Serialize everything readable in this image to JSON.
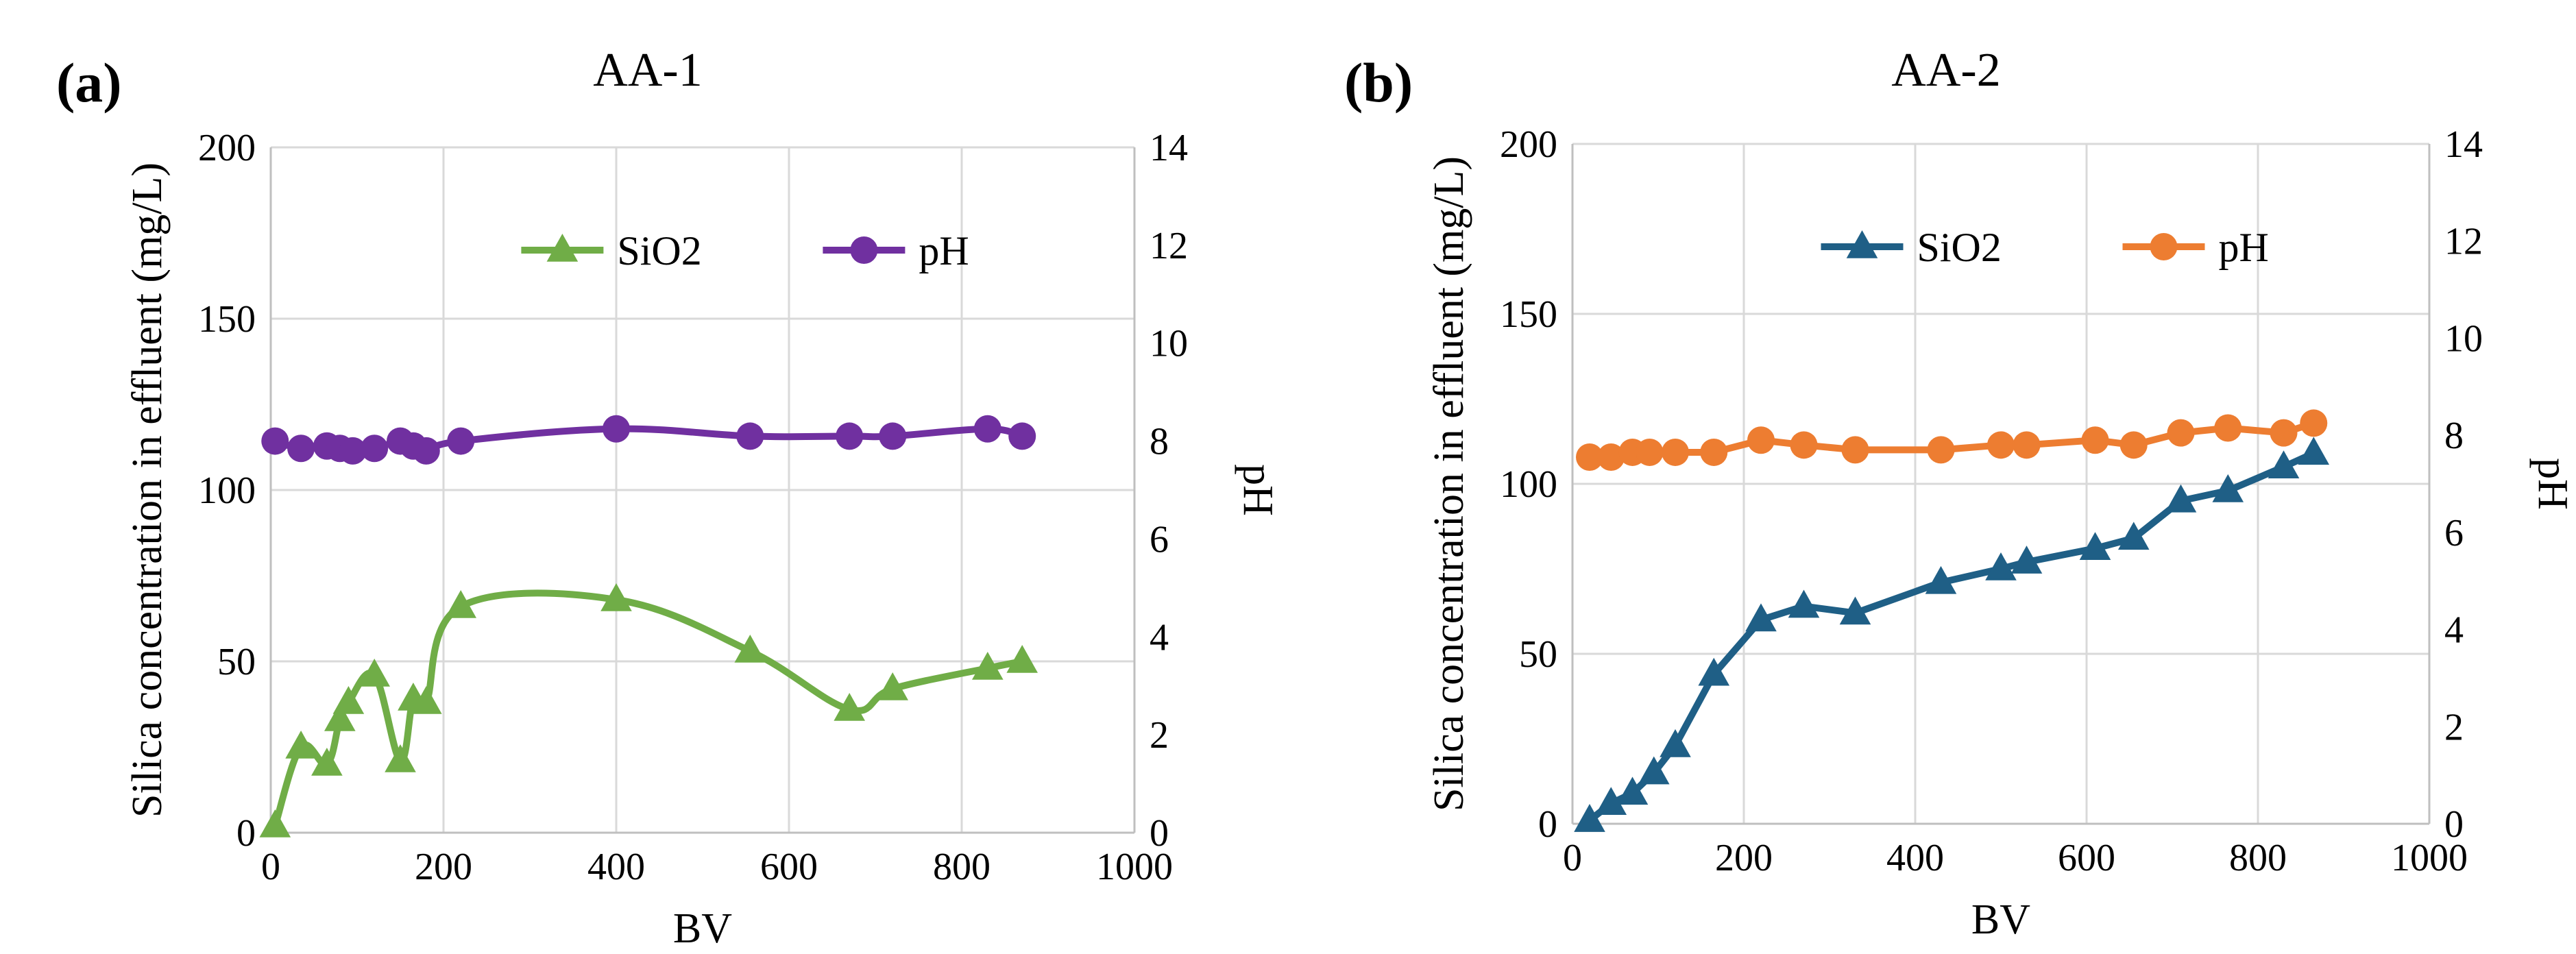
{
  "chart_data": [
    {
      "type": "line",
      "panel_label": "(a)",
      "title": "AA-1",
      "xlabel": "BV",
      "ylabel": "Silica concentration in effluent (mg/L)",
      "y2label": "pH",
      "xlim": [
        0,
        1000
      ],
      "ylim": [
        0,
        200
      ],
      "y2lim": [
        0,
        14
      ],
      "x_ticks": [
        0,
        200,
        400,
        600,
        800,
        1000
      ],
      "y_ticks": [
        0,
        50,
        100,
        150,
        200
      ],
      "y2_ticks": [
        0,
        2,
        4,
        6,
        8,
        10,
        12,
        14
      ],
      "grid": true,
      "legend_position": "top-center",
      "smooth": true,
      "series": [
        {
          "name": "SiO2",
          "axis": "left",
          "marker": "triangle",
          "color": "#70ad47",
          "x": [
            5,
            35,
            65,
            80,
            90,
            120,
            150,
            165,
            180,
            220,
            400,
            555,
            670,
            720,
            830,
            870
          ],
          "y": [
            2,
            25,
            20,
            33,
            38,
            46,
            21,
            39,
            38,
            66,
            68,
            53,
            36,
            42,
            48,
            50
          ]
        },
        {
          "name": "pH",
          "axis": "right",
          "marker": "circle",
          "color": "#7030a0",
          "x": [
            5,
            35,
            65,
            80,
            95,
            120,
            150,
            165,
            180,
            220,
            400,
            555,
            670,
            720,
            830,
            870
          ],
          "y": [
            8.0,
            7.85,
            7.9,
            7.85,
            7.8,
            7.85,
            8.0,
            7.9,
            7.8,
            8.0,
            8.25,
            8.1,
            8.1,
            8.1,
            8.25,
            8.1
          ]
        }
      ]
    },
    {
      "type": "line",
      "panel_label": "(b)",
      "title": "AA-2",
      "xlabel": "BV",
      "ylabel": "Silica concentration in effluent (mg/L)",
      "y2label": "pH",
      "xlim": [
        0,
        1000
      ],
      "ylim": [
        0,
        200
      ],
      "y2lim": [
        0,
        14
      ],
      "x_ticks": [
        0,
        200,
        400,
        600,
        800,
        1000
      ],
      "y_ticks": [
        0,
        50,
        100,
        150,
        200
      ],
      "y2_ticks": [
        0,
        2,
        4,
        6,
        8,
        10,
        12,
        14
      ],
      "grid": true,
      "legend_position": "top-center",
      "smooth": false,
      "series": [
        {
          "name": "SiO2",
          "axis": "left",
          "marker": "triangle",
          "color": "#1f5f86",
          "x": [
            20,
            45,
            70,
            95,
            120,
            165,
            220,
            270,
            330,
            430,
            500,
            530,
            610,
            655,
            710,
            765,
            830,
            865
          ],
          "y": [
            1,
            6,
            9,
            15,
            23,
            44,
            60,
            64,
            62,
            71,
            75,
            77,
            81,
            84,
            95,
            98,
            105,
            109
          ],
          "label_hint": ""
        },
        {
          "name": "pH",
          "axis": "right",
          "marker": "circle",
          "color": "#ed7d31",
          "x": [
            20,
            45,
            70,
            90,
            120,
            165,
            220,
            270,
            330,
            430,
            500,
            530,
            610,
            655,
            710,
            765,
            830,
            865
          ],
          "y": [
            7.55,
            7.55,
            7.65,
            7.65,
            7.65,
            7.65,
            7.9,
            7.8,
            7.7,
            7.7,
            7.8,
            7.8,
            7.9,
            7.8,
            8.05,
            8.15,
            8.05,
            8.25
          ]
        }
      ]
    }
  ]
}
